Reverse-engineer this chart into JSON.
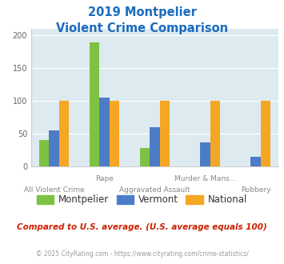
{
  "title_line1": "2019 Montpelier",
  "title_line2": "Violent Crime Comparison",
  "cat_labels_top": [
    "",
    "Rape",
    "",
    "Murder & Mans...",
    ""
  ],
  "cat_labels_bot": [
    "All Violent Crime",
    "",
    "Aggravated Assault",
    "",
    "Robbery"
  ],
  "montpelier": [
    40,
    190,
    28,
    0,
    0
  ],
  "vermont": [
    55,
    105,
    60,
    37,
    14
  ],
  "national": [
    100,
    100,
    100,
    100,
    100
  ],
  "bar_colors": {
    "montpelier": "#7dc242",
    "vermont": "#4d7cc7",
    "national": "#f5a623"
  },
  "ylim": [
    0,
    210
  ],
  "yticks": [
    0,
    50,
    100,
    150,
    200
  ],
  "title_color": "#1a6bbf",
  "bg_color": "#ddeaef",
  "footer_text": "Compared to U.S. average. (U.S. average equals 100)",
  "copyright_text": "© 2025 CityRating.com - https://www.cityrating.com/crime-statistics/",
  "legend_labels": [
    "Montpelier",
    "Vermont",
    "National"
  ],
  "footer_color": "#cc2200",
  "copyright_color": "#999999"
}
